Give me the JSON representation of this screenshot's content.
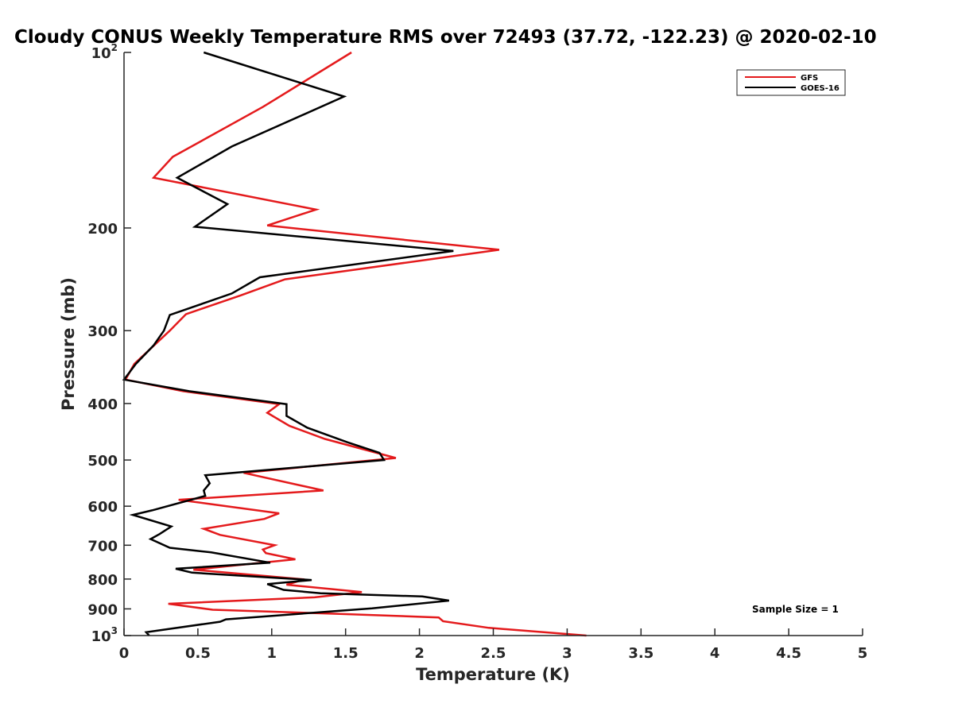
{
  "chart_data": {
    "type": "line",
    "title": "Cloudy CONUS Weekly Temperature RMS over 72493 (37.72, -122.23) @ 2020-02-10",
    "xlabel": "Temperature (K)",
    "ylabel": "Pressure (mb)",
    "xlim": [
      0,
      5
    ],
    "ylim": [
      100,
      1000
    ],
    "y_scale": "log",
    "y_reversed": true,
    "grid": false,
    "legend_position": "top-right",
    "x_ticks": [
      {
        "value": 0,
        "label": "0"
      },
      {
        "value": 0.5,
        "label": "0.5"
      },
      {
        "value": 1,
        "label": "1"
      },
      {
        "value": 1.5,
        "label": "1.5"
      },
      {
        "value": 2,
        "label": "2"
      },
      {
        "value": 2.5,
        "label": "2.5"
      },
      {
        "value": 3,
        "label": "3"
      },
      {
        "value": 3.5,
        "label": "3.5"
      },
      {
        "value": 4,
        "label": "4"
      },
      {
        "value": 4.5,
        "label": "4.5"
      },
      {
        "value": 5,
        "label": "5"
      }
    ],
    "y_ticks": [
      {
        "value": 100,
        "label": "10",
        "sup": "2"
      },
      {
        "value": 200,
        "label": "200",
        "sup": ""
      },
      {
        "value": 300,
        "label": "300",
        "sup": ""
      },
      {
        "value": 400,
        "label": "400",
        "sup": ""
      },
      {
        "value": 500,
        "label": "500",
        "sup": ""
      },
      {
        "value": 600,
        "label": "600",
        "sup": ""
      },
      {
        "value": 700,
        "label": "700",
        "sup": ""
      },
      {
        "value": 800,
        "label": "800",
        "sup": ""
      },
      {
        "value": 900,
        "label": "900",
        "sup": ""
      },
      {
        "value": 1000,
        "label": "10",
        "sup": "3"
      }
    ],
    "annotation": "Sample Size = 1",
    "series": [
      {
        "name": "GFS",
        "color": "#e41a1c",
        "points": [
          [
            1.54,
            100
          ],
          [
            0.94,
            124
          ],
          [
            0.33,
            151
          ],
          [
            0.2,
            164
          ],
          [
            1.3,
            186
          ],
          [
            0.97,
            198
          ],
          [
            2.54,
            218
          ],
          [
            1.09,
            245
          ],
          [
            0.79,
            261
          ],
          [
            0.42,
            281
          ],
          [
            0.31,
            300
          ],
          [
            0.07,
            342
          ],
          [
            0.01,
            364
          ],
          [
            0.4,
            381
          ],
          [
            1.05,
            401
          ],
          [
            0.97,
            415
          ],
          [
            1.12,
            437
          ],
          [
            1.36,
            460
          ],
          [
            1.84,
            496
          ],
          [
            0.81,
            526
          ],
          [
            1.35,
            564
          ],
          [
            0.37,
            585
          ],
          [
            1.05,
            617
          ],
          [
            0.95,
            631
          ],
          [
            0.54,
            656
          ],
          [
            0.65,
            672
          ],
          [
            1.02,
            700
          ],
          [
            0.94,
            712
          ],
          [
            0.96,
            722
          ],
          [
            1.16,
            740
          ],
          [
            0.47,
            771
          ],
          [
            1.22,
            801
          ],
          [
            1.1,
            818
          ],
          [
            1.61,
            842
          ],
          [
            1.29,
            860
          ],
          [
            0.3,
            882
          ],
          [
            0.6,
            903
          ],
          [
            1.46,
            918
          ],
          [
            2.13,
            931
          ],
          [
            2.16,
            945
          ],
          [
            2.47,
            970
          ],
          [
            3.13,
            1000
          ]
        ]
      },
      {
        "name": "GOES-16",
        "color": "#000000",
        "points": [
          [
            0.54,
            100
          ],
          [
            1.49,
            119
          ],
          [
            0.73,
            145
          ],
          [
            0.36,
            164
          ],
          [
            0.7,
            182
          ],
          [
            0.48,
            199
          ],
          [
            2.23,
            219
          ],
          [
            0.92,
            243
          ],
          [
            0.73,
            259
          ],
          [
            0.31,
            282
          ],
          [
            0.27,
            300
          ],
          [
            0.2,
            318
          ],
          [
            0.08,
            342
          ],
          [
            0.0,
            364
          ],
          [
            0.44,
            381
          ],
          [
            1.1,
            401
          ],
          [
            1.1,
            420
          ],
          [
            1.24,
            440
          ],
          [
            1.51,
            466
          ],
          [
            1.73,
            486
          ],
          [
            1.76,
            500
          ],
          [
            0.55,
            531
          ],
          [
            0.58,
            548
          ],
          [
            0.54,
            564
          ],
          [
            0.55,
            576
          ],
          [
            0.19,
            610
          ],
          [
            0.06,
            621
          ],
          [
            0.32,
            650
          ],
          [
            0.24,
            670
          ],
          [
            0.18,
            683
          ],
          [
            0.31,
            707
          ],
          [
            0.59,
            720
          ],
          [
            0.99,
            750
          ],
          [
            0.35,
            768
          ],
          [
            0.46,
            780
          ],
          [
            1.27,
            803
          ],
          [
            0.97,
            816
          ],
          [
            1.08,
            835
          ],
          [
            1.33,
            846
          ],
          [
            2.02,
            857
          ],
          [
            2.2,
            871
          ],
          [
            1.68,
            898
          ],
          [
            0.69,
            938
          ],
          [
            0.65,
            947
          ],
          [
            0.15,
            987
          ],
          [
            0.17,
            1000
          ]
        ]
      }
    ]
  }
}
